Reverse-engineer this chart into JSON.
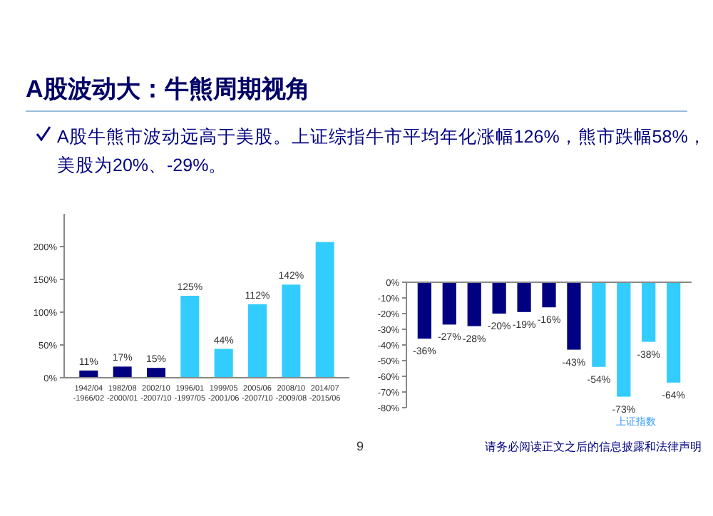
{
  "chart_data": [
    {
      "type": "bar",
      "title": "A股波动大：牛熊周期视角",
      "subtitle": "A股牛熊市波动远高于美股。上证综指牛市平均年化涨幅126%，熊市跌幅58%，美股为20%、-29%。",
      "categories": [
        "1942/04 -1966/02",
        "1982/08 -2000/01",
        "2002/10 -2007/10",
        "1996/01 -1997/05",
        "1999/05 -2001/06",
        "2005/06 -2007/10",
        "2008/10 -2009/08",
        "2014/07 -2015/06"
      ],
      "values": [
        11,
        17,
        15,
        125,
        44,
        112,
        142,
        207
      ],
      "colors": [
        "#000080",
        "#000080",
        "#000080",
        "#33ccff",
        "#33ccff",
        "#33ccff",
        "#33ccff",
        "#33ccff"
      ],
      "value_labels": [
        "11%",
        "17%",
        "15%",
        "125%",
        "44%",
        "112%",
        "142%",
        null
      ],
      "ylim": [
        0,
        250
      ],
      "yticks": [
        {
          "value": 0,
          "label": "0%"
        },
        {
          "value": 50,
          "label": "50%"
        },
        {
          "value": 100,
          "label": "100%"
        },
        {
          "value": 150,
          "label": "150%"
        },
        {
          "value": 200,
          "label": "200%"
        }
      ]
    },
    {
      "type": "bar",
      "categories": [
        null,
        null,
        null,
        null,
        null,
        null,
        null,
        null,
        null,
        null,
        null
      ],
      "values": [
        -36,
        -27,
        -28,
        -20,
        -19,
        -16,
        -43,
        -54,
        -73,
        -38,
        -64
      ],
      "colors": [
        "#000080",
        "#000080",
        "#000080",
        "#000080",
        "#000080",
        "#000080",
        "#000080",
        "#33ccff",
        "#33ccff",
        "#33ccff",
        "#33ccff"
      ],
      "value_labels": [
        "-36%",
        "-27%",
        "-28%",
        "-20%",
        "-19%",
        "-16%",
        "-43%",
        "-54%",
        "-73%",
        "-38%",
        "-64%"
      ],
      "ylim": [
        -80,
        0
      ],
      "yticks": [
        {
          "value": 0,
          "label": "0%"
        },
        {
          "value": -10,
          "label": "-10%"
        },
        {
          "value": -20,
          "label": "-20%"
        },
        {
          "value": -30,
          "label": "-30%"
        },
        {
          "value": -40,
          "label": "-40%"
        },
        {
          "value": -50,
          "label": "-50%"
        },
        {
          "value": -60,
          "label": "-60%"
        },
        {
          "value": -70,
          "label": "-70%"
        },
        {
          "value": -80,
          "label": "-80%"
        }
      ],
      "annotations": [
        "上证指数",
        "9",
        "请务必阅读正文之后的信息披露和法律声明"
      ]
    }
  ]
}
